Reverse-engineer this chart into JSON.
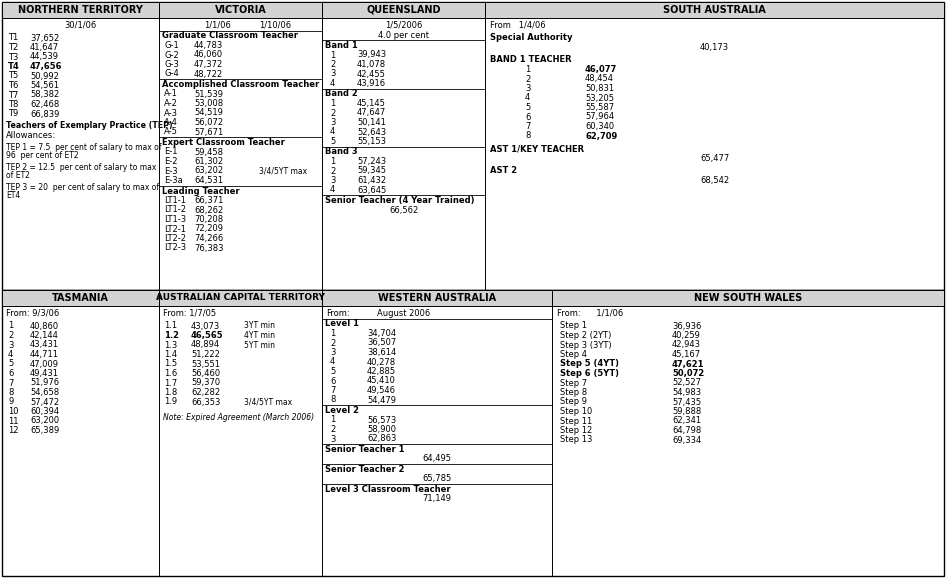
{
  "bg_color": "#ffffff",
  "header_bg": "#d3d3d3",
  "sections": {
    "northern_territory": {
      "header": "NORTHERN TERRITORY",
      "date": "30/1/06",
      "content": [
        {
          "label": "T1",
          "value": "37,652",
          "bold": false
        },
        {
          "label": "T2",
          "value": "41,647",
          "bold": false
        },
        {
          "label": "T3",
          "value": "44,539",
          "bold": false
        },
        {
          "label": "T4",
          "value": "47,656",
          "bold": true
        },
        {
          "label": "T5",
          "value": "50,992",
          "bold": false
        },
        {
          "label": "T6",
          "value": "54,561",
          "bold": false
        },
        {
          "label": "T7",
          "value": "58,382",
          "bold": false
        },
        {
          "label": "T8",
          "value": "62,468",
          "bold": false
        },
        {
          "label": "T9",
          "value": "66,839",
          "bold": false
        }
      ]
    },
    "victoria": {
      "header": "VICTORIA",
      "dates_left": "1/1/06",
      "dates_right": "1/10/06",
      "categories": [
        {
          "name": "Graduate Classroom Teacher",
          "items": [
            {
              "label": "G-1",
              "value": "44,783",
              "note": ""
            },
            {
              "label": "G-2",
              "value": "46,060",
              "note": ""
            },
            {
              "label": "G-3",
              "value": "47,372",
              "note": ""
            },
            {
              "label": "G-4",
              "value": "48,722",
              "note": ""
            }
          ]
        },
        {
          "name": "Accomplished Classroom Teacher",
          "items": [
            {
              "label": "A-1",
              "value": "51,539",
              "note": ""
            },
            {
              "label": "A-2",
              "value": "53,008",
              "note": ""
            },
            {
              "label": "A-3",
              "value": "54,519",
              "note": ""
            },
            {
              "label": "A-4",
              "value": "56,072",
              "note": ""
            },
            {
              "label": "A-5",
              "value": "57,671",
              "note": ""
            }
          ]
        },
        {
          "name": "Expert Classroom Teacher",
          "items": [
            {
              "label": "E-1",
              "value": "59,458",
              "note": ""
            },
            {
              "label": "E-2",
              "value": "61,302",
              "note": ""
            },
            {
              "label": "E-3",
              "value": "63,202",
              "note": "3/4/5YT max"
            },
            {
              "label": "E-3a",
              "value": "64,531",
              "note": ""
            }
          ]
        },
        {
          "name": "Leading Teacher",
          "items": [
            {
              "label": "LT1-1",
              "value": "66,371",
              "note": ""
            },
            {
              "label": "LT1-2",
              "value": "68,262",
              "note": ""
            },
            {
              "label": "LT1-3",
              "value": "70,208",
              "note": ""
            },
            {
              "label": "LT2-1",
              "value": "72,209",
              "note": ""
            },
            {
              "label": "LT2-2",
              "value": "74,266",
              "note": ""
            },
            {
              "label": "LT2-3",
              "value": "76,383",
              "note": ""
            }
          ]
        }
      ]
    },
    "queensland": {
      "header": "QUEENSLAND",
      "date": "1/5/2006",
      "note": "4.0 per cent",
      "categories": [
        {
          "name": "Band 1",
          "items": [
            {
              "label": "1",
              "value": "39,943"
            },
            {
              "label": "2",
              "value": "41,078"
            },
            {
              "label": "3",
              "value": "42,455"
            },
            {
              "label": "4",
              "value": "43,916"
            }
          ]
        },
        {
          "name": "Band 2",
          "items": [
            {
              "label": "1",
              "value": "45,145"
            },
            {
              "label": "2",
              "value": "47,647"
            },
            {
              "label": "3",
              "value": "50,141"
            },
            {
              "label": "4",
              "value": "52,643"
            },
            {
              "label": "5",
              "value": "55,153"
            }
          ]
        },
        {
          "name": "Band 3",
          "items": [
            {
              "label": "1",
              "value": "57,243"
            },
            {
              "label": "2",
              "value": "59,345"
            },
            {
              "label": "3",
              "value": "61,432"
            },
            {
              "label": "4",
              "value": "63,645"
            }
          ]
        },
        {
          "name": "Senior Teacher (4 Year Trained)",
          "items": [
            {
              "label": "",
              "value": "66,562"
            }
          ]
        }
      ]
    },
    "south_australia": {
      "header": "SOUTH AUSTRALIA",
      "date": "From   1/4/06",
      "categories": [
        {
          "name": "Special Authority",
          "value_indent": true,
          "items": [
            {
              "label": "",
              "value": "40,173",
              "bold": false
            }
          ]
        },
        {
          "name": "BAND 1 TEACHER",
          "value_indent": false,
          "items": [
            {
              "label": "1",
              "value": "46,077",
              "bold": true
            },
            {
              "label": "2",
              "value": "48,454",
              "bold": false
            },
            {
              "label": "3",
              "value": "50,831",
              "bold": false
            },
            {
              "label": "4",
              "value": "53,205",
              "bold": false
            },
            {
              "label": "5",
              "value": "55,587",
              "bold": false
            },
            {
              "label": "6",
              "value": "57,964",
              "bold": false
            },
            {
              "label": "7",
              "value": "60,340",
              "bold": false
            },
            {
              "label": "8",
              "value": "62,709",
              "bold": true
            }
          ]
        },
        {
          "name": "AST 1/KEY TEACHER",
          "value_indent": true,
          "items": [
            {
              "label": "",
              "value": "65,477",
              "bold": false
            }
          ]
        },
        {
          "name": "AST 2",
          "value_indent": true,
          "items": [
            {
              "label": "",
              "value": "68,542",
              "bold": false
            }
          ]
        }
      ]
    },
    "tasmania": {
      "header": "TASMANIA",
      "date": "From: 9/3/06",
      "items": [
        {
          "label": "1",
          "value": "40,860"
        },
        {
          "label": "2",
          "value": "42,144"
        },
        {
          "label": "3",
          "value": "43,431"
        },
        {
          "label": "4",
          "value": "44,711"
        },
        {
          "label": "5",
          "value": "47,009"
        },
        {
          "label": "6",
          "value": "49,431"
        },
        {
          "label": "7",
          "value": "51,976"
        },
        {
          "label": "8",
          "value": "54,658"
        },
        {
          "label": "9",
          "value": "57,472"
        },
        {
          "label": "10",
          "value": "60,394"
        },
        {
          "label": "11",
          "value": "63,200"
        },
        {
          "label": "12",
          "value": "65,389"
        }
      ]
    },
    "act": {
      "header": "AUSTRALIAN CAPITAL TERRITORY",
      "date": "From: 1/7/05",
      "items": [
        {
          "label": "1.1",
          "value": "43,073",
          "note": "3YT min",
          "bold": false
        },
        {
          "label": "1.2",
          "value": "46,565",
          "note": "4YT min",
          "bold": true
        },
        {
          "label": "1.3",
          "value": "48,894",
          "note": "5YT min",
          "bold": false
        },
        {
          "label": "1.4",
          "value": "51,222",
          "note": "",
          "bold": false
        },
        {
          "label": "1.5",
          "value": "53,551",
          "note": "",
          "bold": false
        },
        {
          "label": "1.6",
          "value": "56,460",
          "note": "",
          "bold": false
        },
        {
          "label": "1.7",
          "value": "59,370",
          "note": "",
          "bold": false
        },
        {
          "label": "1.8",
          "value": "62,282",
          "note": "",
          "bold": false
        },
        {
          "label": "1.9",
          "value": "66,353",
          "note": "3/4/5YT max",
          "bold": false
        }
      ],
      "footnote": "Note: Expired Agreement (March 2006)"
    },
    "western_australia": {
      "header": "WESTERN AUSTRALIA",
      "date_left": "From:",
      "date_right": "August 2006",
      "categories": [
        {
          "name": "Level 1",
          "items": [
            {
              "label": "1",
              "value": "34,704"
            },
            {
              "label": "2",
              "value": "36,507"
            },
            {
              "label": "3",
              "value": "38,614"
            },
            {
              "label": "4",
              "value": "40,278"
            },
            {
              "label": "5",
              "value": "42,885"
            },
            {
              "label": "6",
              "value": "45,410"
            },
            {
              "label": "7",
              "value": "49,546"
            },
            {
              "label": "8",
              "value": "54,479"
            }
          ]
        },
        {
          "name": "Level 2",
          "items": [
            {
              "label": "1",
              "value": "56,573"
            },
            {
              "label": "2",
              "value": "58,900"
            },
            {
              "label": "3",
              "value": "62,863"
            }
          ]
        },
        {
          "name": "Senior Teacher 1",
          "items": [
            {
              "label": "",
              "value": "64,495"
            }
          ]
        },
        {
          "name": "Senior Teacher 2",
          "items": [
            {
              "label": "",
              "value": "65,785"
            }
          ]
        },
        {
          "name": "Level 3 Classroom Teacher",
          "items": [
            {
              "label": "",
              "value": "71,149"
            }
          ]
        }
      ]
    },
    "new_south_wales": {
      "header": "NEW SOUTH WALES",
      "date": "From:      1/1/06",
      "items": [
        {
          "label": "Step 1",
          "value": "36,936",
          "bold": false
        },
        {
          "label": "Step 2 (2YT)",
          "value": "40,259",
          "bold": false
        },
        {
          "label": "Step 3 (3YT)",
          "value": "42,943",
          "bold": false
        },
        {
          "label": "Step 4",
          "value": "45,167",
          "bold": false
        },
        {
          "label": "Step 5 (4YT)",
          "value": "47,621",
          "bold": true
        },
        {
          "label": "Step 6 (5YT)",
          "value": "50,072",
          "bold": true
        },
        {
          "label": "Step 7",
          "value": "52,527",
          "bold": false
        },
        {
          "label": "Step 8",
          "value": "54,983",
          "bold": false
        },
        {
          "label": "Step 9",
          "value": "57,435",
          "bold": false
        },
        {
          "label": "Step 10",
          "value": "59,888",
          "bold": false
        },
        {
          "label": "Step 11",
          "value": "62,341",
          "bold": false
        },
        {
          "label": "Step 12",
          "value": "64,798",
          "bold": false
        },
        {
          "label": "Step 13",
          "value": "69,334",
          "bold": false
        }
      ]
    }
  }
}
